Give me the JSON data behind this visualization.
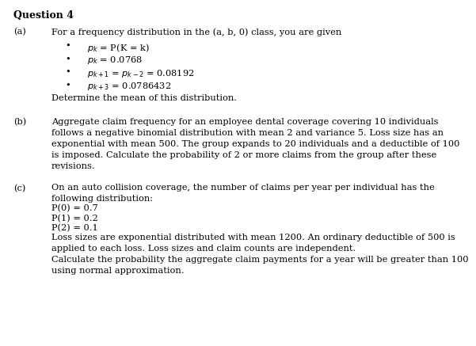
{
  "title": "Question 4",
  "background_color": "#ffffff",
  "text_color": "#000000",
  "font_family": "DejaVu Serif",
  "base_fs": 8.2,
  "title_fs": 9.0,
  "sections": {
    "a_intro": "For a frequency distribution in the (a, b, 0) class, you are given",
    "a_bullets": [
      "$p_k$ = P(K = k)",
      "$p_k$ = 0.0768",
      "$p_{k+1}$ = $p_{k-2}$ = 0.08192",
      "$p_{k+3}$ = 0.0786432"
    ],
    "a_closing": "Determine the mean of this distribution.",
    "b_body": "Aggregate claim frequency for an employee dental coverage covering 10 individuals\nfollows a negative binomial distribution with mean 2 and variance 5. Loss size has an\nexponential with mean 500. The group expands to 20 individuals and a deductible of 100\nis imposed. Calculate the probability of 2 or more claims from the group after these\nrevisions.",
    "c_body1": "On an auto collision coverage, the number of claims per year per individual has the\nfollowing distribution:",
    "c_dist": [
      "P(0) = 0.7",
      "P(1) = 0.2",
      "P(2) = 0.1"
    ],
    "c_body2": "Loss sizes are exponential distributed with mean 1200. An ordinary deductible of 500 is\napplied to each loss. Loss sizes and claim counts are independent.\nCalculate the probability the aggregate claim payments for a year will be greater than 100\nusing normal approximation."
  }
}
